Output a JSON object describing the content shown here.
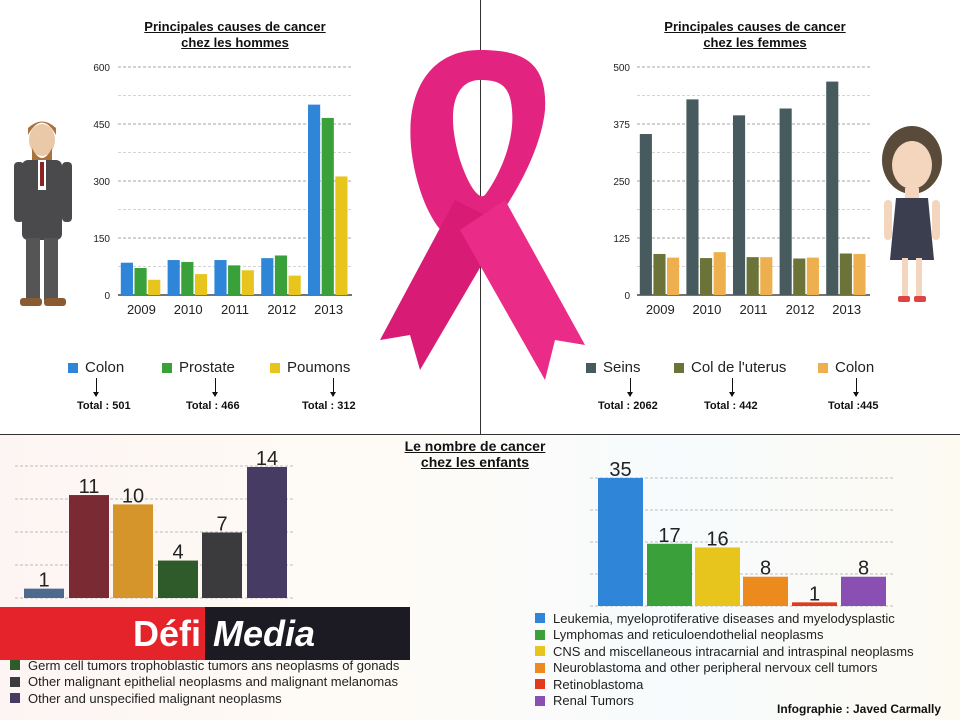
{
  "men": {
    "title_line1": "Principales causes de cancer",
    "title_line2": "chez les hommes",
    "totals": [
      "Total : 501",
      "Total : 466",
      "Total : 312"
    ]
  },
  "women": {
    "title_line1": "Principales causes de cancer",
    "title_line2": "chez les femmes",
    "totals": [
      "Total : 2062",
      "Total : 442",
      "Total :445"
    ]
  },
  "children": {
    "title_line1": "Le nombre de cancer",
    "title_line2": "chez les enfants"
  },
  "logo": {
    "part1": "Défi",
    "part2": "Media"
  },
  "credit": "Infographie : Javed Carmally",
  "chart_data": [
    {
      "id": "men",
      "type": "bar",
      "title": "Principales causes de cancer chez les hommes",
      "categories": [
        "2009",
        "2010",
        "2011",
        "2012",
        "2013"
      ],
      "yticks": [
        "0",
        "150",
        "300",
        "450",
        "600"
      ],
      "ylim": [
        0,
        600
      ],
      "grid": true,
      "legend_position": "bottom",
      "series": [
        {
          "name": "Colon",
          "color": "#2f86d8",
          "values": [
            85,
            92,
            92,
            97,
            501
          ]
        },
        {
          "name": "Prostate",
          "color": "#3aa13a",
          "values": [
            71,
            87,
            78,
            104,
            466
          ]
        },
        {
          "name": "Poumons",
          "color": "#e8c51c",
          "values": [
            40,
            55,
            65,
            51,
            312
          ]
        }
      ]
    },
    {
      "id": "women",
      "type": "bar",
      "title": "Principales causes de cancer chez les femmes",
      "categories": [
        "2009",
        "2010",
        "2011",
        "2012",
        "2013"
      ],
      "yticks": [
        "0",
        "125",
        "250",
        "375",
        "500"
      ],
      "ylim": [
        0,
        500
      ],
      "grid": true,
      "legend_position": "bottom",
      "series": [
        {
          "name": "Seins",
          "color": "#475a5e",
          "values": [
            353,
            429,
            394,
            409,
            468
          ]
        },
        {
          "name": "Col de l'uterus",
          "color": "#6b7338",
          "values": [
            90,
            81,
            83,
            80,
            91
          ]
        },
        {
          "name": "Colon",
          "color": "#eeb04e",
          "values": [
            82,
            94,
            83,
            82,
            90
          ]
        }
      ]
    },
    {
      "id": "kids-left",
      "type": "bar",
      "title": "Le nombre de cancer chez les enfants",
      "ylim": [
        0,
        14
      ],
      "grid": true,
      "legend_position": "bottom",
      "bars": [
        {
          "name": "",
          "color": "#4d6a8e",
          "value": 1,
          "label": "1"
        },
        {
          "name": "",
          "color": "#7a2a33",
          "value": 11,
          "label": "11"
        },
        {
          "name": "",
          "color": "#d6952b",
          "value": 10,
          "label": "10"
        },
        {
          "name": "Germ cell tumors trophoblastic tumors ans neoplasms of gonads",
          "color": "#2f5a2a",
          "value": 4,
          "label": "4"
        },
        {
          "name": "Other malignant epithelial neoplasms and malignant melanomas",
          "color": "#3b3b3d",
          "value": 7,
          "label": "7"
        },
        {
          "name": "Other and unspecified malignant neoplasms",
          "color": "#463b63",
          "value": 14,
          "label": "14"
        }
      ]
    },
    {
      "id": "kids-right",
      "type": "bar",
      "ylim": [
        0,
        35
      ],
      "grid": true,
      "legend_position": "bottom",
      "bars": [
        {
          "name": "Leukemia, myeloprotiferative diseases and myelodysplastic",
          "color": "#2f86d8",
          "value": 35,
          "label": "35"
        },
        {
          "name": "Lymphomas and reticuloendothelial neoplasms",
          "color": "#3aa13a",
          "value": 17,
          "label": "17"
        },
        {
          "name": "CNS and miscellaneous intracarnial and intraspinal neoplasms",
          "color": "#e8c51c",
          "value": 16,
          "label": "16"
        },
        {
          "name": "Neuroblastoma and other peripheral nervoux cell tumors",
          "color": "#ec8a1e",
          "value": 8,
          "label": "8"
        },
        {
          "name": "Retinoblastoma",
          "color": "#e23a1c",
          "value": 1,
          "label": "1"
        },
        {
          "name": "Renal Tumors",
          "color": "#8a4fb3",
          "value": 8,
          "label": "8"
        }
      ]
    }
  ]
}
